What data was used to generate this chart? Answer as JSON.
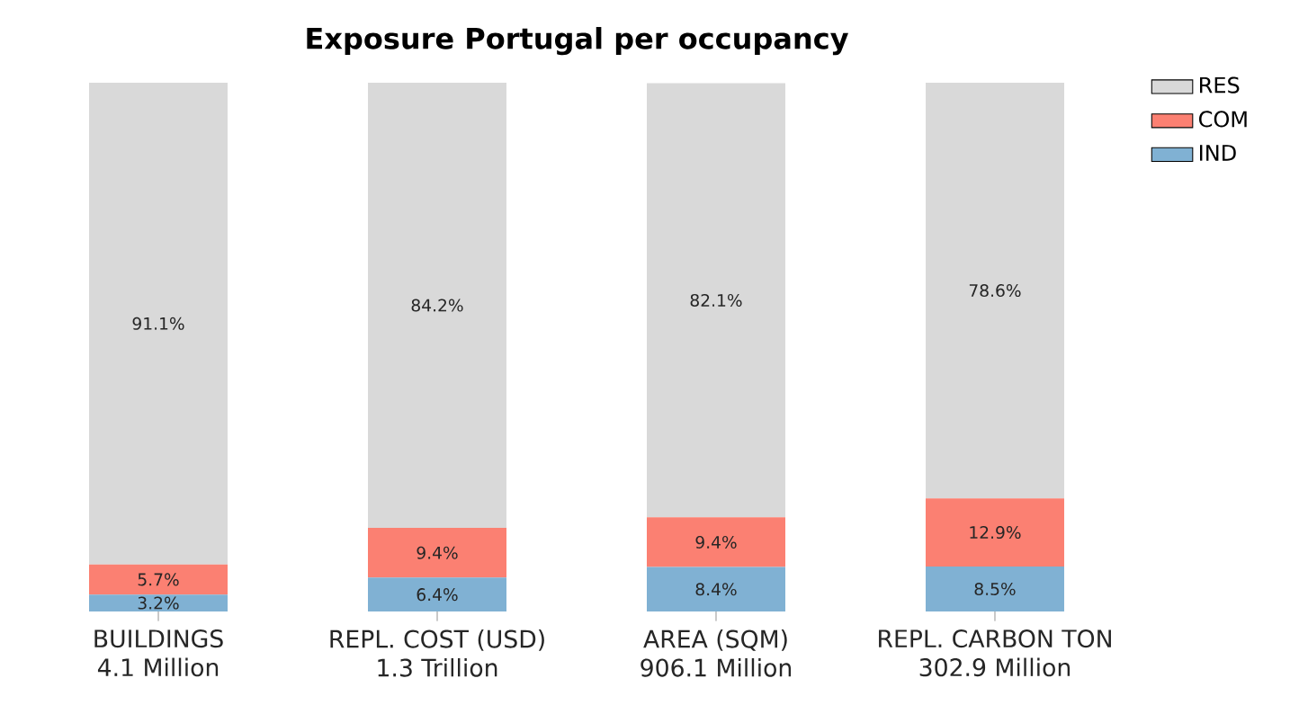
{
  "chart_data": {
    "type": "bar",
    "stacked": true,
    "title": "Exposure Portugal per occupancy",
    "categories": [
      "BUILDINGS",
      "REPL. COST (USD)",
      "AREA (SQM)",
      "REPL. CARBON TON"
    ],
    "series": [
      {
        "name": "IND",
        "color": "#80b1d3",
        "values": [
          3.2,
          6.4,
          8.4,
          8.5
        ],
        "value_labels": [
          "3.2%",
          "6.4%",
          "8.4%",
          "8.5%"
        ]
      },
      {
        "name": "COM",
        "color": "#fb8072",
        "values": [
          5.7,
          9.4,
          9.4,
          12.9
        ],
        "value_labels": [
          "5.7%",
          "9.4%",
          "9.4%",
          "12.9%"
        ]
      },
      {
        "name": "RES",
        "color": "#d9d9d9",
        "values": [
          91.1,
          84.2,
          82.1,
          78.6
        ],
        "value_labels": [
          "91.1%",
          "84.2%",
          "82.1%",
          "78.6%"
        ]
      }
    ],
    "annotations": [
      "4.1 Million",
      "1.3 Trillion",
      "906.1 Million",
      "302.9 Million"
    ],
    "legend": "top right"
  }
}
